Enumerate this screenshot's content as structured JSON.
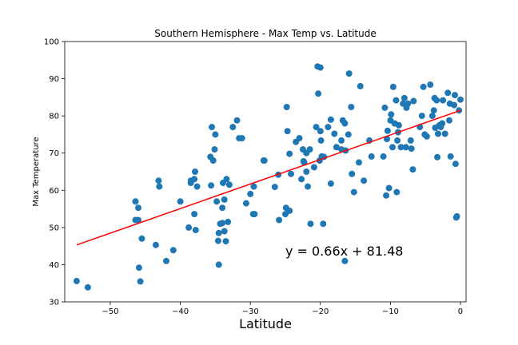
{
  "chart_data": {
    "type": "scatter",
    "title": "Southern Hemisphere - Max Temp vs. Latitude",
    "xlabel": "Latitude",
    "ylabel": "Max Temperature",
    "xlim": [
      -56.5,
      0.8
    ],
    "ylim": [
      30,
      100
    ],
    "xticks": [
      -50,
      -40,
      -30,
      -20,
      -10,
      0
    ],
    "xtick_labels": [
      "−50",
      "−40",
      "−30",
      "−20",
      "−10",
      "0"
    ],
    "yticks": [
      30,
      40,
      50,
      60,
      70,
      80,
      90,
      100
    ],
    "ytick_labels": [
      "30",
      "40",
      "50",
      "60",
      "70",
      "80",
      "90",
      "100"
    ],
    "grid": false,
    "point_color": "#1f77b4",
    "line_color": "#ff0000",
    "annotation": {
      "text": "y = 0.66x + 81.48",
      "x": -25,
      "y": 43.5,
      "color": "#ff0000"
    },
    "regression": {
      "slope": 0.66,
      "intercept": 81.48,
      "x_range": [
        -54.8,
        0
      ]
    },
    "points": [
      [
        -54.8,
        35.6
      ],
      [
        -53.2,
        33.9
      ],
      [
        -46.4,
        57.0
      ],
      [
        -46.4,
        52.0
      ],
      [
        -46.0,
        52.0
      ],
      [
        -46.0,
        55.3
      ],
      [
        -45.9,
        39.2
      ],
      [
        -45.7,
        35.5
      ],
      [
        -45.5,
        47.0
      ],
      [
        -43.5,
        45.3
      ],
      [
        -43.1,
        62.6
      ],
      [
        -43.0,
        61.0
      ],
      [
        -42.0,
        41.0
      ],
      [
        -41.0,
        43.9
      ],
      [
        -40.0,
        57.0
      ],
      [
        -38.8,
        50.0
      ],
      [
        -38.5,
        62.0
      ],
      [
        -38.5,
        62.6
      ],
      [
        -38.0,
        53.6
      ],
      [
        -38.0,
        63.0
      ],
      [
        -37.9,
        65.0
      ],
      [
        -37.8,
        49.3
      ],
      [
        -37.6,
        61.0
      ],
      [
        -35.7,
        69.0
      ],
      [
        -35.6,
        61.3
      ],
      [
        -35.5,
        77.0
      ],
      [
        -35.3,
        68.0
      ],
      [
        -35.0,
        75.0
      ],
      [
        -35.1,
        71.0
      ],
      [
        -34.8,
        57.0
      ],
      [
        -34.6,
        46.4
      ],
      [
        -34.5,
        48.5
      ],
      [
        -34.5,
        40.0
      ],
      [
        -34.3,
        51.0
      ],
      [
        -34.0,
        55.3
      ],
      [
        -34.0,
        51.2
      ],
      [
        -33.9,
        62.0
      ],
      [
        -33.7,
        49.0
      ],
      [
        -33.7,
        57.5
      ],
      [
        -33.5,
        46.3
      ],
      [
        -33.4,
        63.0
      ],
      [
        -33.2,
        51.5
      ],
      [
        -33.0,
        61.5
      ],
      [
        -32.5,
        77.0
      ],
      [
        -31.9,
        78.8
      ],
      [
        -31.6,
        74.0
      ],
      [
        -31.2,
        74.0
      ],
      [
        -30.6,
        56.5
      ],
      [
        -30.0,
        59.0
      ],
      [
        -29.6,
        53.6
      ],
      [
        -29.5,
        61.0
      ],
      [
        -29.4,
        53.6
      ],
      [
        -28.1,
        68.0
      ],
      [
        -28.0,
        68.0
      ],
      [
        -26.5,
        60.9
      ],
      [
        -26.0,
        64.2
      ],
      [
        -25.9,
        52.0
      ],
      [
        -25.0,
        53.6
      ],
      [
        -24.9,
        55.3
      ],
      [
        -24.8,
        82.4
      ],
      [
        -24.7,
        75.9
      ],
      [
        -24.4,
        54.5
      ],
      [
        -24.4,
        69.8
      ],
      [
        -24.2,
        64.4
      ],
      [
        -23.5,
        73.0
      ],
      [
        -23.0,
        74.0
      ],
      [
        -22.7,
        63.0
      ],
      [
        -22.5,
        71.0
      ],
      [
        -22.4,
        67.8
      ],
      [
        -22.3,
        67.5
      ],
      [
        -22.0,
        70.0
      ],
      [
        -22.0,
        65.0
      ],
      [
        -21.8,
        61.0
      ],
      [
        -21.5,
        71.0
      ],
      [
        -21.4,
        51.0
      ],
      [
        -20.9,
        66.2
      ],
      [
        -20.6,
        77.0
      ],
      [
        -20.4,
        93.3
      ],
      [
        -20.3,
        86.0
      ],
      [
        -20.1,
        68.0
      ],
      [
        -20.0,
        93.0
      ],
      [
        -20.0,
        75.9
      ],
      [
        -19.9,
        73.4
      ],
      [
        -19.8,
        69.1
      ],
      [
        -19.6,
        51.0
      ],
      [
        -19.5,
        69.0
      ],
      [
        -18.9,
        77.0
      ],
      [
        -18.5,
        79.0
      ],
      [
        -18.5,
        61.8
      ],
      [
        -18.0,
        75.2
      ],
      [
        -17.7,
        71.6
      ],
      [
        -17.0,
        73.4
      ],
      [
        -17.0,
        71.0
      ],
      [
        -16.8,
        78.8
      ],
      [
        -16.5,
        78.0
      ],
      [
        -16.5,
        41.0
      ],
      [
        -16.4,
        70.7
      ],
      [
        -16.0,
        75.0
      ],
      [
        -15.9,
        91.4
      ],
      [
        -15.6,
        82.4
      ],
      [
        -15.5,
        64.4
      ],
      [
        -15.2,
        59.5
      ],
      [
        -14.5,
        67.5
      ],
      [
        -14.3,
        88.0
      ],
      [
        -13.8,
        62.6
      ],
      [
        -13.0,
        73.4
      ],
      [
        -12.7,
        69.1
      ],
      [
        -11.0,
        69.1
      ],
      [
        -10.8,
        82.2
      ],
      [
        -10.6,
        58.6
      ],
      [
        -10.5,
        73.8
      ],
      [
        -10.4,
        76.0
      ],
      [
        -10.2,
        60.6
      ],
      [
        -10.0,
        78.8
      ],
      [
        -9.9,
        80.4
      ],
      [
        -9.7,
        71.6
      ],
      [
        -9.6,
        87.8
      ],
      [
        -9.4,
        78.0
      ],
      [
        -9.2,
        84.2
      ],
      [
        -9.1,
        59.5
      ],
      [
        -9.0,
        73.4
      ],
      [
        -8.9,
        75.6
      ],
      [
        -8.8,
        77.5
      ],
      [
        -8.5,
        71.6
      ],
      [
        -8.2,
        83.3
      ],
      [
        -8.0,
        84.8
      ],
      [
        -7.8,
        71.6
      ],
      [
        -7.7,
        82.2
      ],
      [
        -7.5,
        83.3
      ],
      [
        -7.1,
        73.4
      ],
      [
        -7.0,
        71.2
      ],
      [
        -6.8,
        65.6
      ],
      [
        -6.7,
        84.0
      ],
      [
        -5.8,
        77.0
      ],
      [
        -5.5,
        80.0
      ],
      [
        -5.3,
        87.8
      ],
      [
        -5.1,
        75.0
      ],
      [
        -4.8,
        74.5
      ],
      [
        -4.3,
        88.4
      ],
      [
        -4.0,
        80.0
      ],
      [
        -3.8,
        81.5
      ],
      [
        -3.7,
        84.8
      ],
      [
        -3.6,
        76.8
      ],
      [
        -3.4,
        84.2
      ],
      [
        -3.3,
        68.9
      ],
      [
        -3.2,
        75.2
      ],
      [
        -3.0,
        77.5
      ],
      [
        -2.8,
        77.0
      ],
      [
        -2.6,
        78.0
      ],
      [
        -2.5,
        84.2
      ],
      [
        -2.2,
        75.2
      ],
      [
        -1.8,
        86.2
      ],
      [
        -1.6,
        78.8
      ],
      [
        -1.5,
        83.3
      ],
      [
        -1.4,
        69.1
      ],
      [
        -0.9,
        82.9
      ],
      [
        -0.8,
        85.6
      ],
      [
        -0.7,
        67.1
      ],
      [
        -0.6,
        52.7
      ],
      [
        -0.5,
        53.0
      ],
      [
        -0.2,
        81.5
      ],
      [
        0.0,
        84.4
      ]
    ]
  }
}
